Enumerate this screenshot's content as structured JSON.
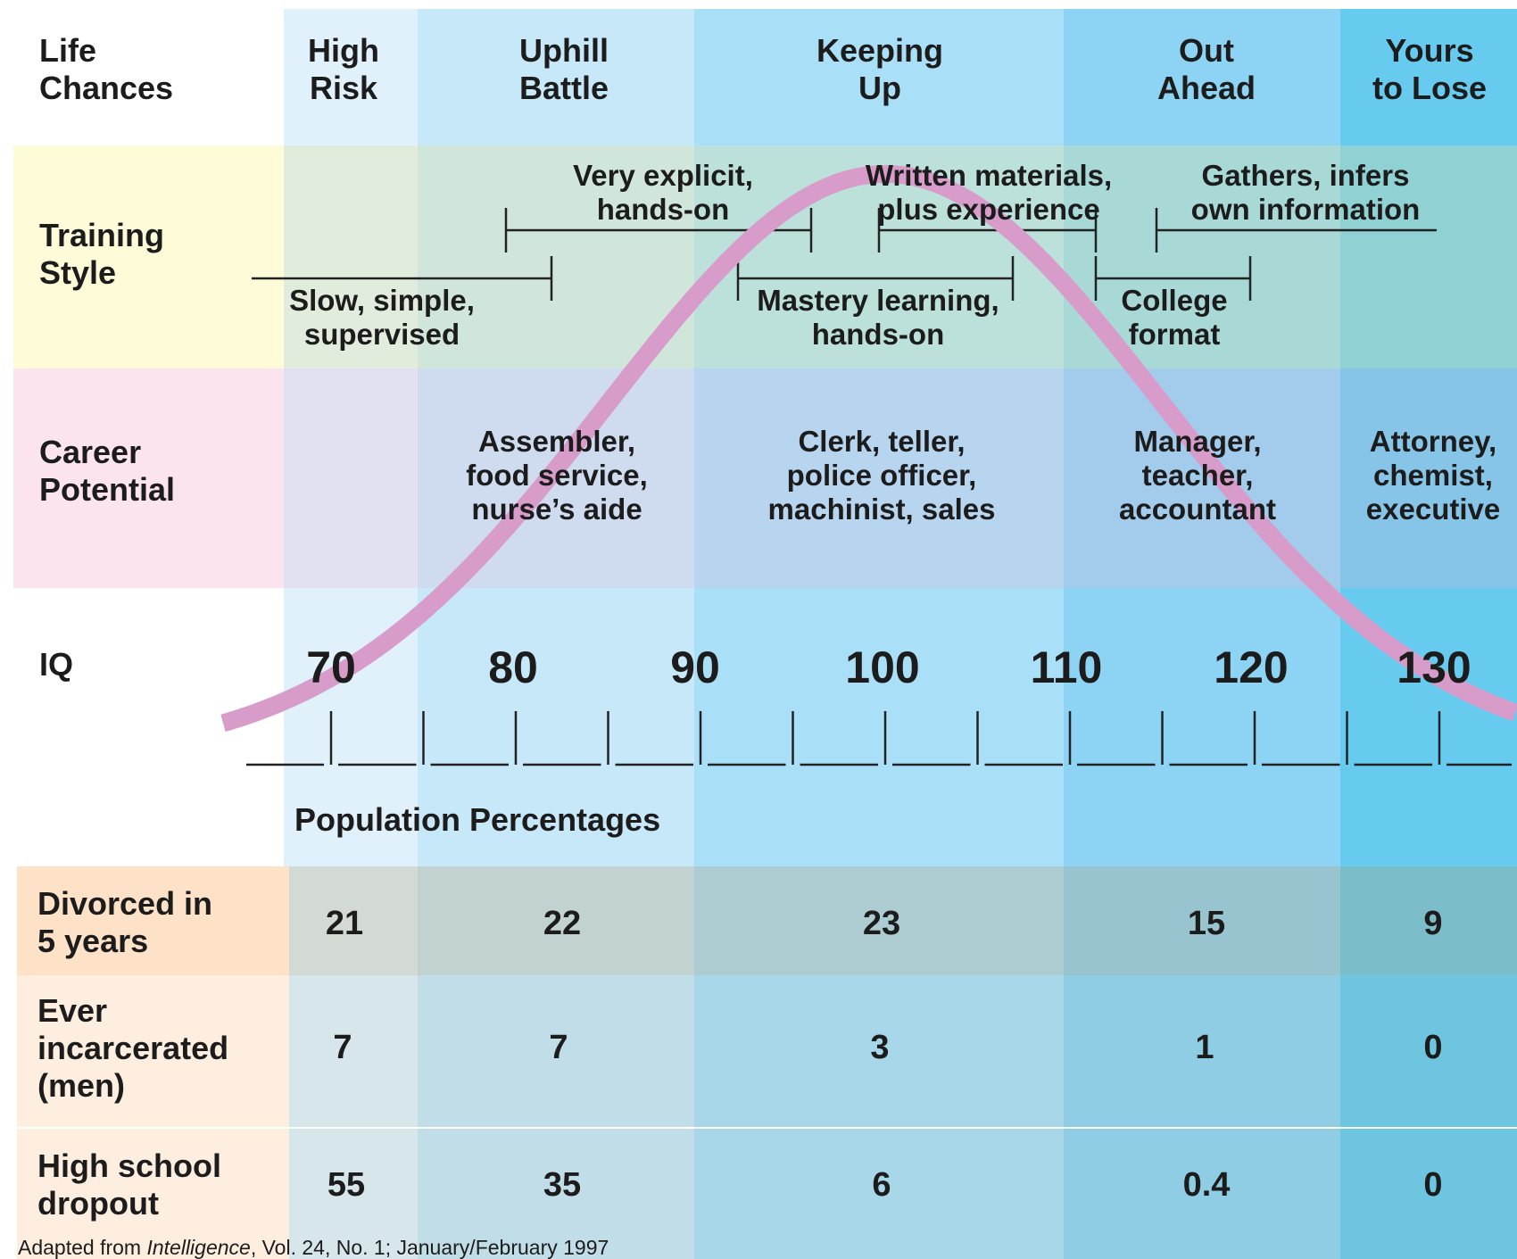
{
  "colors": {
    "col_high_risk": "#e0f1fb",
    "col_uphill": "#c7e8f9",
    "col_keeping": "#a9e0f8",
    "col_out_ahead": "#8dd4f4",
    "col_yours": "#67cbef",
    "training_label_bg": "#fdfbd8",
    "career_label_bg": "#fce4ef",
    "stats_label_divorced": "#fde2c8",
    "stats_label_other": "#fdeedf",
    "curve": "#d89ccb"
  },
  "row_labels": {
    "life_chances": "Life\nChances",
    "training_style": "Training\nStyle",
    "career_potential": "Career\nPotential",
    "iq": "IQ"
  },
  "columns": [
    {
      "title": "High\nRisk"
    },
    {
      "title": "Uphill\nBattle"
    },
    {
      "title": "Keeping\nUp"
    },
    {
      "title": "Out\nAhead"
    },
    {
      "title": "Yours\nto Lose"
    }
  ],
  "training": {
    "slow": "Slow, simple,\nsupervised",
    "very_explicit": "Very explicit,\nhands-on",
    "mastery": "Mastery learning,\nhands-on",
    "written": "Written materials,\nplus experience",
    "college": "College\nformat",
    "gathers": "Gathers, infers\nown information"
  },
  "careers": [
    "",
    "Assembler,\nfood service,\nnurse’s aide",
    "Clerk, teller,\npolice officer,\nmachinist, sales",
    "Manager,\nteacher,\naccountant",
    "Attorney,\nchemist,\nexecutive"
  ],
  "iq_ticks": [
    "70",
    "80",
    "90",
    "100",
    "110",
    "120",
    "130"
  ],
  "population_heading": "Population Percentages",
  "stats": [
    {
      "label": "Divorced in\n5 years",
      "values": [
        "21",
        "22",
        "23",
        "15",
        "9"
      ]
    },
    {
      "label": "Ever\nincarcerated\n(men)",
      "values": [
        "7",
        "7",
        "3",
        "1",
        "0"
      ]
    },
    {
      "label": "High school\ndropout",
      "values": [
        "55",
        "35",
        "6",
        "0.4",
        "0"
      ]
    }
  ],
  "source": {
    "prefix": "Adapted from ",
    "italic": "Intelligence",
    "suffix": ", Vol. 24, No. 1; January/February 1997"
  },
  "curve": {
    "mean": 100,
    "sd": 15
  }
}
